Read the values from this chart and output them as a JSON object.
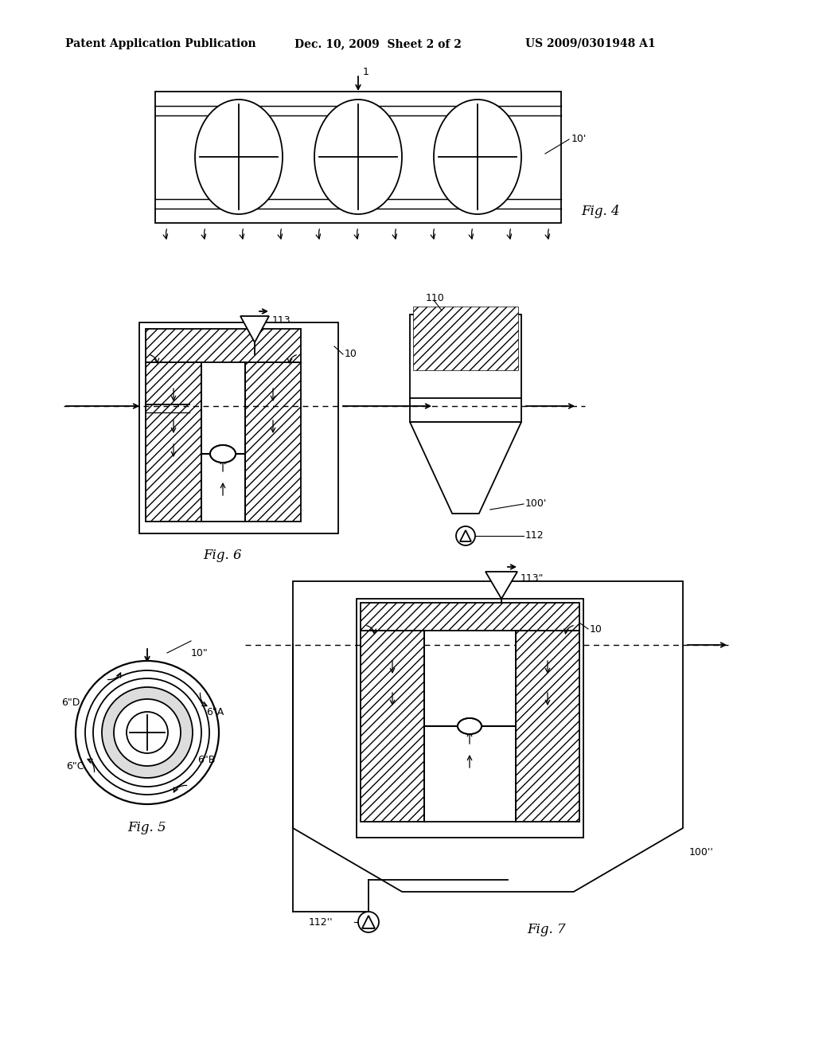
{
  "bg_color": "#ffffff",
  "header_text": "Patent Application Publication",
  "header_date": "Dec. 10, 2009  Sheet 2 of 2",
  "header_patent": "US 2009/0301948 A1",
  "fig4_label": "Fig. 4",
  "fig5_label": "Fig. 5",
  "fig6_label": "Fig. 6",
  "fig7_label": "Fig. 7",
  "line_color": "#000000"
}
